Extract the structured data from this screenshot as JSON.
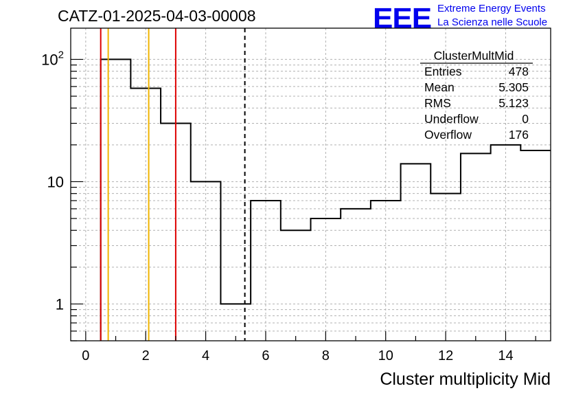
{
  "header": {
    "run_title": "CATZ-01-2025-04-03-00008",
    "logo_text": "EEE",
    "tagline_1": "Extreme Energy Events",
    "tagline_2": "La Scienza nelle Scuole"
  },
  "colors": {
    "histogram": "#000000",
    "grid": "#b0b0b0",
    "red_lines": "#dd0000",
    "orange_lines": "#f0b400",
    "logo": "#0000ee"
  },
  "chart_data": {
    "type": "bar",
    "style": "step-histogram",
    "xlabel": "Cluster multiplicity Mid",
    "ylabel": "",
    "xlim": [
      -0.5,
      15.5
    ],
    "ylim": [
      0.5,
      180
    ],
    "yscale": "log",
    "grid": true,
    "x_ticks": [
      0,
      2,
      4,
      6,
      8,
      10,
      12,
      14
    ],
    "y_ticks": [
      {
        "value": 1,
        "base": "1",
        "exp": ""
      },
      {
        "value": 10,
        "base": "10",
        "exp": ""
      },
      {
        "value": 100,
        "base": "10",
        "exp": "2"
      }
    ],
    "bins": [
      {
        "low": 0.5,
        "high": 1.5,
        "value": 100
      },
      {
        "low": 1.5,
        "high": 2.5,
        "value": 58
      },
      {
        "low": 2.5,
        "high": 3.5,
        "value": 30
      },
      {
        "low": 3.5,
        "high": 4.5,
        "value": 10
      },
      {
        "low": 4.5,
        "high": 5.5,
        "value": 1
      },
      {
        "low": 5.5,
        "high": 6.5,
        "value": 7
      },
      {
        "low": 6.5,
        "high": 7.5,
        "value": 4
      },
      {
        "low": 7.5,
        "high": 8.5,
        "value": 5
      },
      {
        "low": 8.5,
        "high": 9.5,
        "value": 6
      },
      {
        "low": 9.5,
        "high": 10.5,
        "value": 7
      },
      {
        "low": 10.5,
        "high": 11.5,
        "value": 14
      },
      {
        "low": 11.5,
        "high": 12.5,
        "value": 8
      },
      {
        "low": 12.5,
        "high": 13.5,
        "value": 17
      },
      {
        "low": 13.5,
        "high": 14.5,
        "value": 20
      },
      {
        "low": 14.5,
        "high": 15.5,
        "value": 18
      }
    ],
    "vertical_lines": [
      {
        "x": 0.5,
        "color": "red",
        "style": "solid"
      },
      {
        "x": 0.75,
        "color": "orange",
        "style": "solid"
      },
      {
        "x": 2.1,
        "color": "orange",
        "style": "solid"
      },
      {
        "x": 3.0,
        "color": "red",
        "style": "solid"
      },
      {
        "x": 5.305,
        "color": "black",
        "style": "dashed"
      }
    ],
    "stats": {
      "title": "ClusterMultMid",
      "rows": [
        {
          "label": "Entries",
          "value": "478"
        },
        {
          "label": "Mean",
          "value": "5.305"
        },
        {
          "label": "RMS",
          "value": "5.123"
        },
        {
          "label": "Underflow",
          "value": "0"
        },
        {
          "label": "Overflow",
          "value": "176"
        }
      ]
    }
  }
}
